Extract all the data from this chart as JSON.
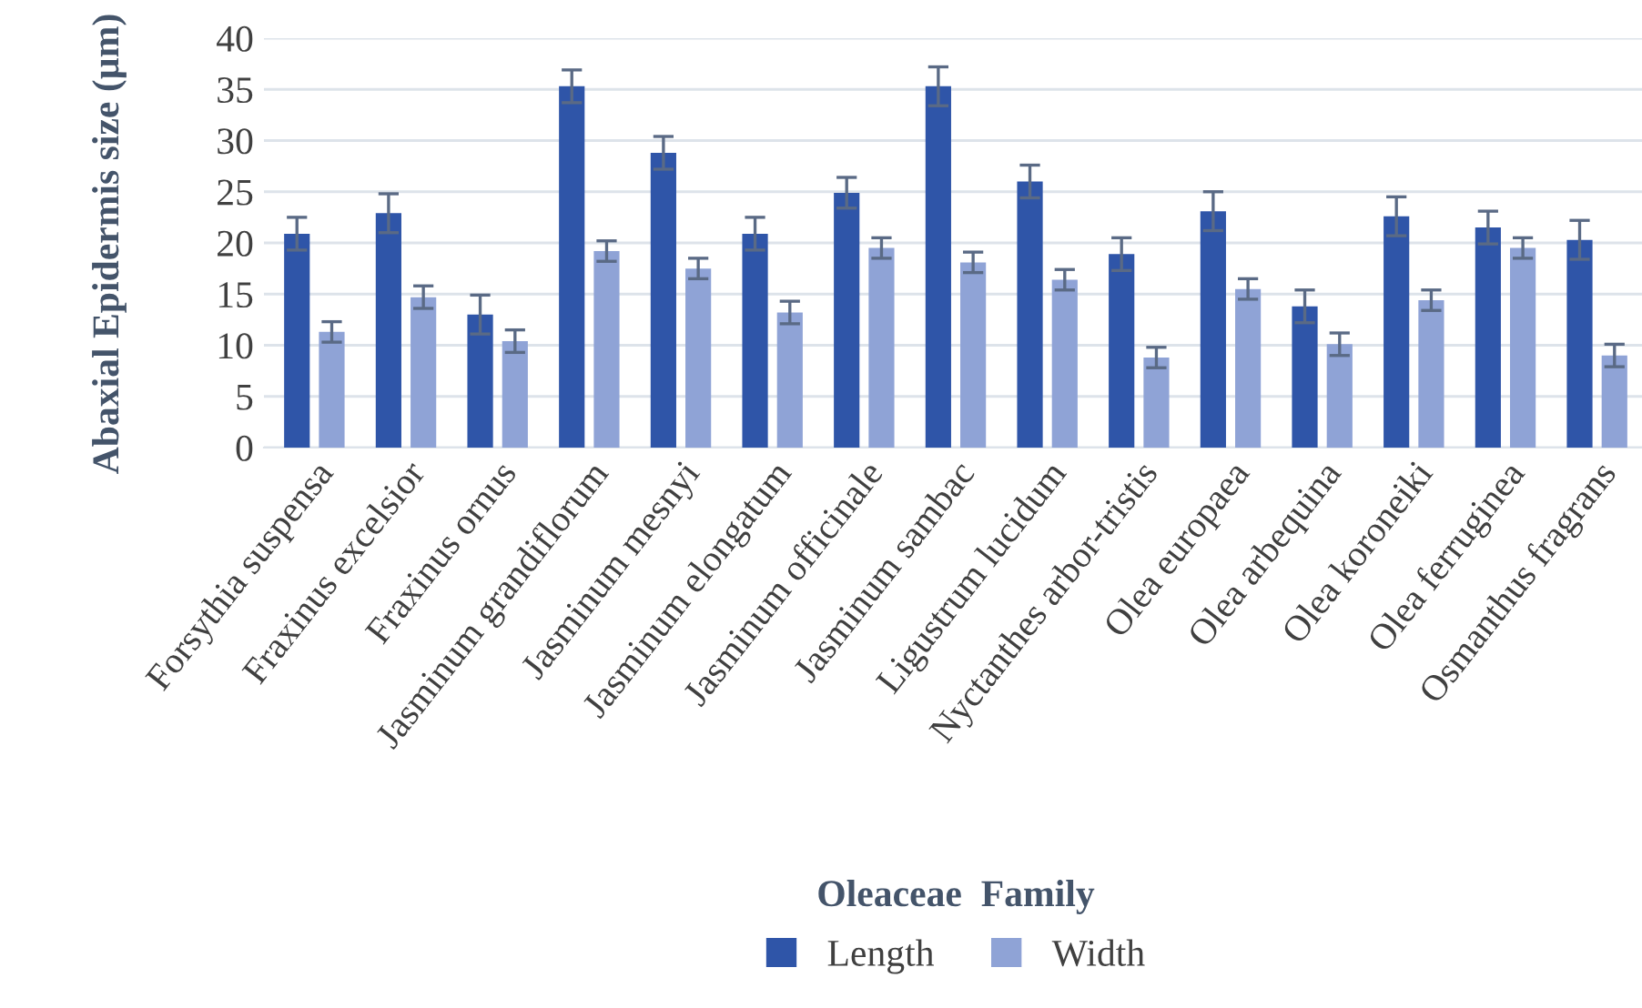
{
  "chart_data": {
    "type": "bar",
    "xlabel": "Oleaceae  Family",
    "ylabel": "Abaxial Epidermis size (µm)",
    "categories": [
      "Forsythia suspensa",
      "Fraxinus excelsior",
      "Fraxinus ornus",
      "Jasminum grandiflorum",
      "Jasminum mesnyi",
      "Jasminum elongatum",
      "Jasminum officinale",
      "Jasminum sambac",
      "Ligustrum lucidum",
      "Nyctanthes arbor-tristis",
      "Olea europaea",
      "Olea arbequina",
      "Olea koroneiki",
      "Olea ferruginea",
      "Osmanthus fragrans"
    ],
    "series": [
      {
        "name": "Length",
        "color": "#2f55a8",
        "values": [
          20.9,
          22.9,
          13.0,
          35.3,
          28.8,
          20.9,
          24.9,
          35.3,
          26.0,
          18.9,
          23.1,
          13.8,
          22.6,
          21.5,
          20.3
        ],
        "errors": [
          1.6,
          1.9,
          1.9,
          1.6,
          1.6,
          1.6,
          1.5,
          1.9,
          1.6,
          1.6,
          1.9,
          1.6,
          1.9,
          1.6,
          1.9
        ]
      },
      {
        "name": "Width",
        "color": "#8fa3d6",
        "values": [
          11.3,
          14.7,
          10.4,
          19.2,
          17.5,
          13.2,
          19.5,
          18.1,
          16.4,
          8.8,
          15.5,
          10.1,
          14.4,
          19.5,
          9.0
        ],
        "errors": [
          1.0,
          1.1,
          1.1,
          1.0,
          1.0,
          1.1,
          1.0,
          1.0,
          1.0,
          1.0,
          1.0,
          1.1,
          1.0,
          1.0,
          1.1
        ]
      }
    ],
    "ylim": [
      0,
      40
    ],
    "yticks": [
      0,
      5,
      10,
      15,
      20,
      25,
      30,
      35,
      40
    ],
    "grid": "y",
    "legend": "bottom"
  }
}
